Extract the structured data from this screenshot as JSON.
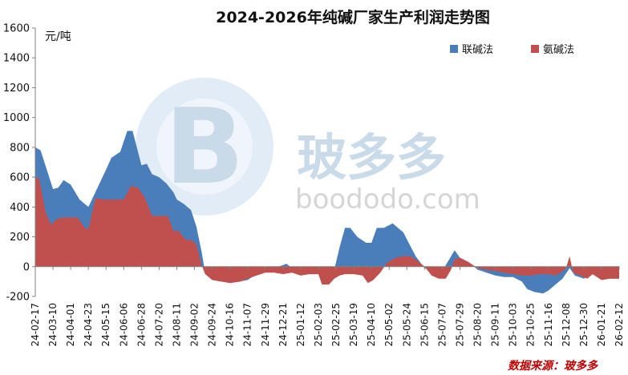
{
  "chart_data": {
    "type": "area",
    "title": "2024-2026年纯碱厂家生产利润走势图",
    "ylabel": "元/吨",
    "ylim": [
      -200,
      1600
    ],
    "yticks": [
      -200,
      0,
      200,
      400,
      600,
      800,
      1000,
      1200,
      1400,
      1600
    ],
    "x_tick_labels": [
      "24-02-17",
      "24-03-10",
      "24-04-01",
      "24-04-23",
      "24-05-15",
      "24-06-06",
      "24-06-28",
      "24-07-20",
      "24-08-11",
      "24-09-02",
      "24-09-24",
      "24-10-16",
      "24-11-07",
      "24-11-29",
      "24-12-21",
      "25-01-12",
      "25-02-03",
      "25-02-25",
      "25-03-19",
      "25-04-10",
      "25-05-02",
      "25-05-24",
      "25-06-15",
      "25-07-07",
      "25-07-29",
      "25-08-20",
      "25-09-11",
      "25-10-03",
      "25-10-25",
      "25-11-16",
      "25-12-08",
      "25-12-30",
      "26-01-21",
      "26-02-12"
    ],
    "legend_position": "top-right",
    "series": [
      {
        "name": "联碱法",
        "color": "#4a7ebb",
        "points": [
          [
            0,
            800
          ],
          [
            0.3,
            780
          ],
          [
            1,
            520
          ],
          [
            1.3,
            530
          ],
          [
            1.6,
            580
          ],
          [
            2,
            550
          ],
          [
            2.5,
            450
          ],
          [
            3,
            400
          ],
          [
            3.4,
            500
          ],
          [
            4,
            650
          ],
          [
            4.3,
            730
          ],
          [
            4.8,
            770
          ],
          [
            5.2,
            910
          ],
          [
            5.5,
            910
          ],
          [
            6,
            680
          ],
          [
            6.3,
            690
          ],
          [
            6.6,
            620
          ],
          [
            7,
            600
          ],
          [
            7.4,
            560
          ],
          [
            7.8,
            500
          ],
          [
            8,
            450
          ],
          [
            8.4,
            420
          ],
          [
            8.8,
            380
          ],
          [
            9.1,
            270
          ],
          [
            9.4,
            100
          ],
          [
            9.6,
            -40
          ],
          [
            10,
            -70
          ],
          [
            10.4,
            -80
          ],
          [
            11,
            -110
          ],
          [
            11.5,
            -100
          ],
          [
            12,
            -90
          ],
          [
            12.5,
            -50
          ],
          [
            13,
            -30
          ],
          [
            13.5,
            -10
          ],
          [
            14,
            10
          ],
          [
            14.2,
            20
          ],
          [
            14.5,
            -10
          ],
          [
            15,
            -40
          ],
          [
            15.5,
            -50
          ],
          [
            16,
            -50
          ],
          [
            16.2,
            -60
          ],
          [
            16.6,
            -20
          ],
          [
            16.9,
            -20
          ],
          [
            17.2,
            130
          ],
          [
            17.5,
            260
          ],
          [
            17.8,
            260
          ],
          [
            18.2,
            200
          ],
          [
            18.7,
            160
          ],
          [
            19,
            160
          ],
          [
            19.3,
            260
          ],
          [
            19.7,
            260
          ],
          [
            20.2,
            290
          ],
          [
            20.5,
            260
          ],
          [
            20.8,
            230
          ],
          [
            21.1,
            160
          ],
          [
            21.5,
            70
          ],
          [
            22,
            -10
          ],
          [
            22.5,
            -30
          ],
          [
            23,
            -30
          ],
          [
            23.4,
            50
          ],
          [
            23.7,
            110
          ],
          [
            24,
            60
          ],
          [
            24.5,
            30
          ],
          [
            25,
            -20
          ],
          [
            25.5,
            -40
          ],
          [
            26,
            -60
          ],
          [
            26.5,
            -70
          ],
          [
            27,
            -70
          ],
          [
            27.5,
            -100
          ],
          [
            27.8,
            -150
          ],
          [
            28.2,
            -170
          ],
          [
            28.7,
            -180
          ],
          [
            29,
            -160
          ],
          [
            29.4,
            -120
          ],
          [
            29.8,
            -80
          ],
          [
            30.2,
            -10
          ],
          [
            30.5,
            -60
          ],
          [
            31,
            -80
          ],
          [
            31.5,
            -50
          ],
          [
            32,
            -60
          ],
          [
            32.5,
            -80
          ],
          [
            33,
            -80
          ]
        ]
      },
      {
        "name": "氨碱法",
        "color": "#c0504d",
        "points": [
          [
            0,
            590
          ],
          [
            0.2,
            600
          ],
          [
            0.6,
            360
          ],
          [
            0.9,
            280
          ],
          [
            1.2,
            320
          ],
          [
            1.6,
            330
          ],
          [
            2,
            330
          ],
          [
            2.4,
            330
          ],
          [
            2.8,
            260
          ],
          [
            3,
            250
          ],
          [
            3.4,
            460
          ],
          [
            3.8,
            450
          ],
          [
            4.5,
            450
          ],
          [
            5,
            450
          ],
          [
            5.4,
            540
          ],
          [
            5.8,
            530
          ],
          [
            6.2,
            460
          ],
          [
            6.6,
            340
          ],
          [
            7,
            340
          ],
          [
            7.5,
            340
          ],
          [
            7.8,
            240
          ],
          [
            8.1,
            240
          ],
          [
            8.5,
            180
          ],
          [
            8.8,
            180
          ],
          [
            9.1,
            150
          ],
          [
            9.4,
            10
          ],
          [
            9.6,
            -50
          ],
          [
            10,
            -90
          ],
          [
            10.5,
            -100
          ],
          [
            11,
            -110
          ],
          [
            11.6,
            -100
          ],
          [
            12,
            -80
          ],
          [
            12.5,
            -60
          ],
          [
            13,
            -40
          ],
          [
            13.5,
            -40
          ],
          [
            14,
            -50
          ],
          [
            14.5,
            -40
          ],
          [
            15,
            -60
          ],
          [
            15.5,
            -50
          ],
          [
            16,
            -50
          ],
          [
            16.2,
            -120
          ],
          [
            16.6,
            -120
          ],
          [
            16.9,
            -80
          ],
          [
            17.2,
            -60
          ],
          [
            17.5,
            -50
          ],
          [
            18,
            -50
          ],
          [
            18.5,
            -60
          ],
          [
            18.8,
            -110
          ],
          [
            19.1,
            -90
          ],
          [
            19.5,
            -40
          ],
          [
            19.9,
            30
          ],
          [
            20.4,
            60
          ],
          [
            20.8,
            70
          ],
          [
            21.2,
            70
          ],
          [
            21.6,
            40
          ],
          [
            22,
            0
          ],
          [
            22.4,
            -60
          ],
          [
            22.8,
            -80
          ],
          [
            23.2,
            -80
          ],
          [
            23.5,
            -20
          ],
          [
            23.7,
            50
          ],
          [
            24,
            60
          ],
          [
            24.5,
            30
          ],
          [
            25,
            -10
          ],
          [
            25.5,
            -20
          ],
          [
            26,
            -30
          ],
          [
            26.5,
            -40
          ],
          [
            27,
            -50
          ],
          [
            27.5,
            -60
          ],
          [
            28,
            -60
          ],
          [
            28.5,
            -50
          ],
          [
            29,
            -50
          ],
          [
            29.4,
            -60
          ],
          [
            29.7,
            -40
          ],
          [
            30,
            -10
          ],
          [
            30.2,
            70
          ],
          [
            30.4,
            -40
          ],
          [
            30.8,
            -60
          ],
          [
            31.2,
            -80
          ],
          [
            31.5,
            -50
          ],
          [
            32,
            -90
          ],
          [
            32.5,
            -80
          ],
          [
            33,
            -80
          ]
        ]
      }
    ],
    "watermark": {
      "glyph": "B",
      "text_cn": "玻多多",
      "text_en": "boododo.com"
    },
    "source": "数据来源：玻多多"
  }
}
